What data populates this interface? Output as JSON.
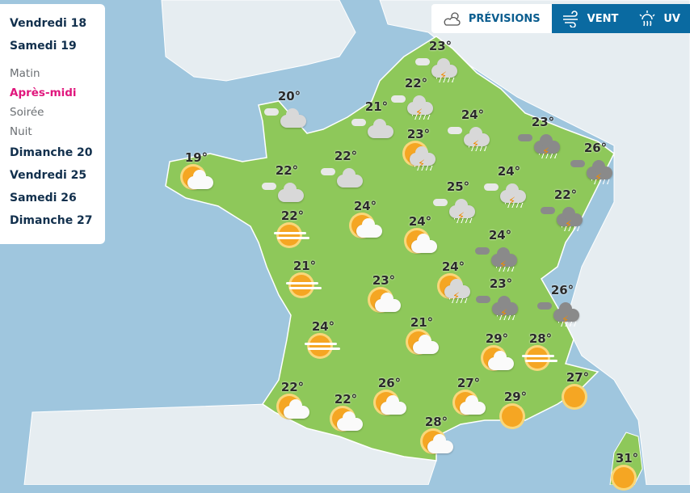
{
  "colors": {
    "accent": "#e0177d",
    "tab_active_text": "#0a5d8f",
    "tab_bg": "#0a6aa1",
    "land_france": "#8ec85a",
    "sea": "#9fc6de"
  },
  "sidebar": {
    "days_before": [
      "Vendredi 18",
      "Samedi 19"
    ],
    "slots": [
      "Matin",
      "Après-midi",
      "Soirée",
      "Nuit"
    ],
    "active_slot": "Après-midi",
    "days_after": [
      "Dimanche 20",
      "Vendredi 25",
      "Samedi 26",
      "Dimanche 27"
    ]
  },
  "tabs": [
    {
      "label": "PRÉVISIONS",
      "icon": "sun-cloud-icon",
      "active": true
    },
    {
      "label": "VENT",
      "icon": "wind-icon",
      "active": false
    },
    {
      "label": "UV",
      "icon": "uv-icon",
      "active": false
    }
  ],
  "markers": [
    {
      "temp": "23°",
      "icon": "storm"
    },
    {
      "temp": "22°",
      "icon": "storm"
    },
    {
      "temp": "21°",
      "icon": "cloud"
    },
    {
      "temp": "20°",
      "icon": "cloud"
    },
    {
      "temp": "24°",
      "icon": "storm"
    },
    {
      "temp": "23°",
      "icon": "sun-storm"
    },
    {
      "temp": "23°",
      "icon": "dark-storm"
    },
    {
      "temp": "26°",
      "icon": "dark-storm"
    },
    {
      "temp": "19°",
      "icon": "sun-cloud"
    },
    {
      "temp": "22°",
      "icon": "cloud"
    },
    {
      "temp": "22°",
      "icon": "cloud"
    },
    {
      "temp": "25°",
      "icon": "storm"
    },
    {
      "temp": "24°",
      "icon": "storm"
    },
    {
      "temp": "22°",
      "icon": "dark-storm"
    },
    {
      "temp": "22°",
      "icon": "sun-fog"
    },
    {
      "temp": "24°",
      "icon": "sun-cloud"
    },
    {
      "temp": "24°",
      "icon": "sun-cloud"
    },
    {
      "temp": "24°",
      "icon": "dark-storm"
    },
    {
      "temp": "21°",
      "icon": "sun-fog"
    },
    {
      "temp": "24°",
      "icon": "sun-storm"
    },
    {
      "temp": "23°",
      "icon": "sun-cloud"
    },
    {
      "temp": "23°",
      "icon": "dark-storm"
    },
    {
      "temp": "26°",
      "icon": "dark-storm"
    },
    {
      "temp": "24°",
      "icon": "sun-fog"
    },
    {
      "temp": "21°",
      "icon": "sun-cloud"
    },
    {
      "temp": "29°",
      "icon": "sun-cloud"
    },
    {
      "temp": "28°",
      "icon": "sun-fog"
    },
    {
      "temp": "22°",
      "icon": "sun-cloud"
    },
    {
      "temp": "26°",
      "icon": "sun-cloud"
    },
    {
      "temp": "27°",
      "icon": "sun-cloud"
    },
    {
      "temp": "22°",
      "icon": "sun-cloud"
    },
    {
      "temp": "27°",
      "icon": "sun"
    },
    {
      "temp": "29°",
      "icon": "sun"
    },
    {
      "temp": "28°",
      "icon": "sun-cloud"
    },
    {
      "temp": "31°",
      "icon": "sun"
    }
  ]
}
